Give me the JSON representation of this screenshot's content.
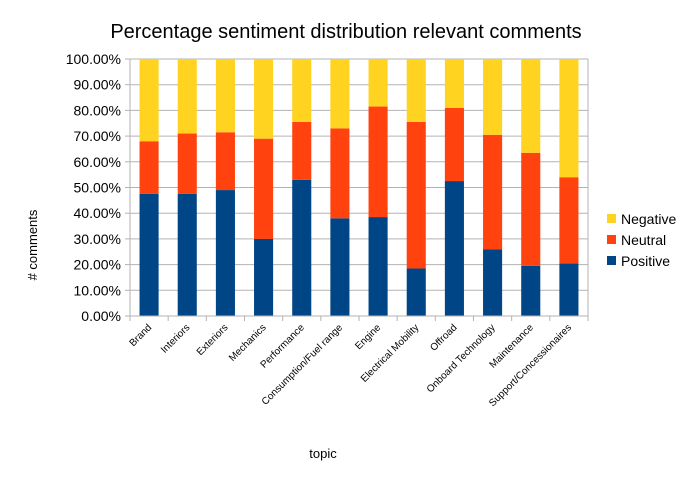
{
  "chart_data": {
    "type": "bar",
    "stacked": true,
    "title": "Percentage sentiment distribution relevant comments",
    "xlabel": "topic",
    "ylabel": "# comments",
    "ylim": [
      0,
      100
    ],
    "grid": true,
    "legend_position": "right",
    "categories": [
      "Brand",
      "Interiors",
      "Exteriors",
      "Mechanics",
      "Performance",
      "Consumption/Fuel range",
      "Engine",
      "Electrical Mobility",
      "Offroad",
      "Onboard Technology",
      "Maintenance",
      "Support/Concessionaires"
    ],
    "yticks": [
      "0.00%",
      "10.00%",
      "20.00%",
      "30.00%",
      "40.00%",
      "50.00%",
      "60.00%",
      "70.00%",
      "80.00%",
      "90.00%",
      "100.00%"
    ],
    "series": [
      {
        "name": "Positive",
        "color": "#004586",
        "values": [
          47.5,
          47.5,
          49,
          30,
          53,
          38,
          38.5,
          18.5,
          52.5,
          26,
          19.5,
          20.5
        ]
      },
      {
        "name": "Neutral",
        "color": "#ff420e",
        "values": [
          20.5,
          23.5,
          22.5,
          39,
          22.5,
          35,
          43,
          57,
          28.5,
          44.5,
          44,
          33.5
        ]
      },
      {
        "name": "Negative",
        "color": "#ffd320",
        "values": [
          32,
          29,
          28.5,
          31,
          24.5,
          27,
          18.5,
          24.5,
          19,
          29.5,
          36.5,
          46
        ]
      }
    ],
    "legend_order": [
      "Negative",
      "Neutral",
      "Positive"
    ]
  }
}
